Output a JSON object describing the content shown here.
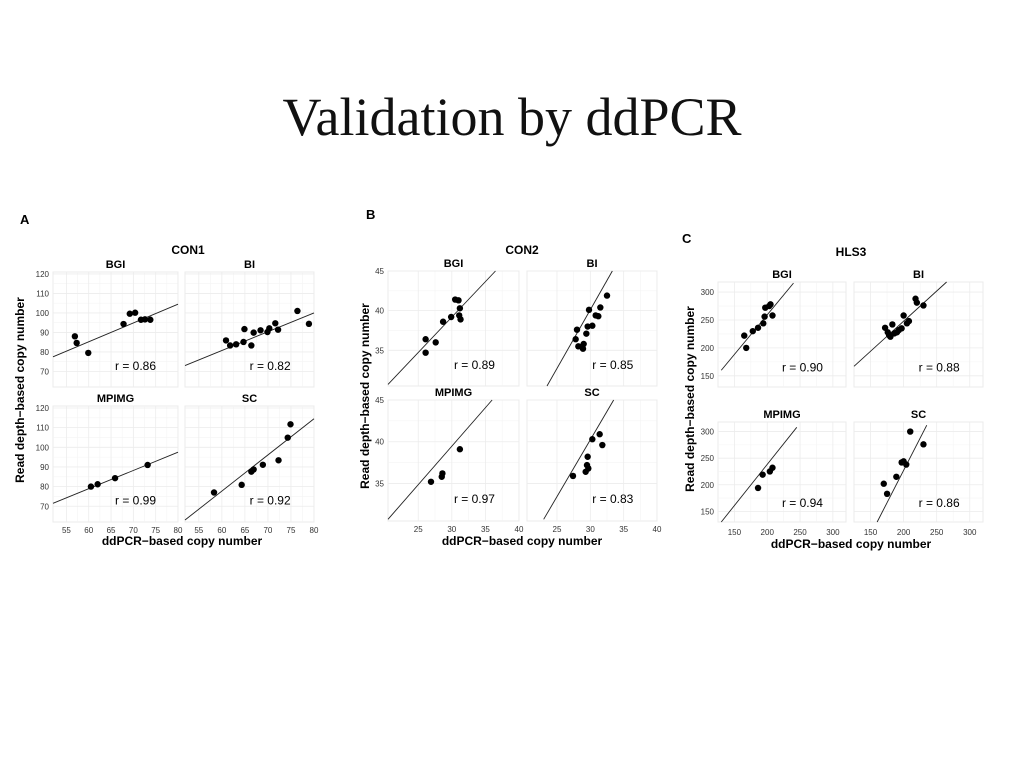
{
  "title": "Validation by ddPCR",
  "x_axis_label": "ddPCR−based copy number",
  "y_axis_label": "Read depth−based copy number",
  "chart_data": [
    {
      "type": "scatter",
      "label": "A",
      "title": "CON1",
      "xlabel": "ddPCR−based copy number",
      "ylabel": "Read depth−based copy number",
      "x_ticks": [
        55,
        60,
        65,
        70,
        75,
        80
      ],
      "y_ticks": [
        70,
        80,
        90,
        100,
        110,
        120
      ],
      "xlim": [
        52,
        80
      ],
      "ylim": [
        62,
        121
      ],
      "grid": true,
      "panels": [
        {
          "name": "BGI",
          "r": "r = 0.86",
          "line": [
            [
              52,
              77.5
            ],
            [
              80,
              104.5
            ]
          ],
          "points": [
            [
              56.9,
              88.0
            ],
            [
              57.3,
              84.6
            ],
            [
              59.9,
              79.5
            ],
            [
              67.8,
              94.3
            ],
            [
              69.2,
              99.6
            ],
            [
              70.4,
              100.1
            ],
            [
              71.7,
              96.5
            ],
            [
              72.6,
              96.7
            ],
            [
              73.8,
              96.5
            ]
          ]
        },
        {
          "name": "BI",
          "r": "r = 0.82",
          "line": [
            [
              52,
              73.0
            ],
            [
              80,
              100.0
            ]
          ],
          "points": [
            [
              60.9,
              85.9
            ],
            [
              61.8,
              83.3
            ],
            [
              63.1,
              83.9
            ],
            [
              64.7,
              85.1
            ],
            [
              64.9,
              91.7
            ],
            [
              66.4,
              83.3
            ],
            [
              66.9,
              89.9
            ],
            [
              68.4,
              91.1
            ],
            [
              69.9,
              90.2
            ],
            [
              70.3,
              92.1
            ],
            [
              71.6,
              94.7
            ],
            [
              72.2,
              91.4
            ],
            [
              76.4,
              101.0
            ],
            [
              78.9,
              94.4
            ]
          ]
        },
        {
          "name": "MPIMG",
          "r": "r = 0.99",
          "line": [
            [
              52,
              71.5
            ],
            [
              80,
              97.5
            ]
          ],
          "points": [
            [
              60.5,
              80.0
            ],
            [
              62.0,
              81.2
            ],
            [
              65.9,
              84.3
            ],
            [
              73.2,
              91.0
            ]
          ]
        },
        {
          "name": "SC",
          "r": "r = 0.92",
          "line": [
            [
              52,
              63.0
            ],
            [
              80,
              114.5
            ]
          ],
          "points": [
            [
              58.3,
              77.0
            ],
            [
              64.3,
              80.9
            ],
            [
              66.4,
              87.6
            ],
            [
              66.9,
              88.7
            ],
            [
              68.9,
              91.1
            ],
            [
              72.3,
              93.4
            ],
            [
              74.3,
              104.9
            ],
            [
              74.9,
              111.7
            ]
          ]
        }
      ]
    },
    {
      "type": "scatter",
      "label": "B",
      "title": "CON2",
      "xlabel": "ddPCR−based copy number",
      "ylabel": "Read depth−based copy number",
      "x_ticks": [
        25,
        30,
        35,
        40
      ],
      "y_ticks": [
        35,
        40,
        45
      ],
      "xlim": [
        20.5,
        40
      ],
      "ylim": [
        30.5,
        45
      ],
      "grid": true,
      "panels": [
        {
          "name": "BGI",
          "r": "r = 0.89",
          "line": [
            [
              20.5,
              30.7
            ],
            [
              36.5,
              45.0
            ]
          ],
          "points": [
            [
              26.1,
              36.4
            ],
            [
              26.1,
              34.7
            ],
            [
              27.6,
              36.0
            ],
            [
              28.7,
              38.6
            ],
            [
              29.9,
              39.2
            ],
            [
              30.5,
              41.4
            ],
            [
              31.0,
              41.3
            ],
            [
              31.1,
              39.4
            ],
            [
              31.2,
              40.3
            ],
            [
              31.3,
              38.9
            ]
          ]
        },
        {
          "name": "BI",
          "r": "r = 0.85",
          "line": [
            [
              23.5,
              30.5
            ],
            [
              33.3,
              45.0
            ]
          ],
          "points": [
            [
              27.8,
              36.4
            ],
            [
              28.0,
              37.6
            ],
            [
              28.2,
              35.5
            ],
            [
              28.9,
              35.2
            ],
            [
              29.0,
              35.8
            ],
            [
              29.4,
              37.1
            ],
            [
              29.6,
              38.0
            ],
            [
              29.8,
              40.1
            ],
            [
              30.3,
              38.1
            ],
            [
              30.8,
              39.4
            ],
            [
              31.2,
              39.3
            ],
            [
              31.5,
              40.4
            ],
            [
              32.5,
              41.9
            ]
          ]
        },
        {
          "name": "MPIMG",
          "r": "r = 0.97",
          "line": [
            [
              20.5,
              30.7
            ],
            [
              36.0,
              45.0
            ]
          ],
          "points": [
            [
              26.9,
              35.2
            ],
            [
              28.5,
              35.8
            ],
            [
              28.6,
              36.2
            ],
            [
              31.2,
              39.1
            ]
          ]
        },
        {
          "name": "SC",
          "r": "r = 0.83",
          "line": [
            [
              23.0,
              30.7
            ],
            [
              33.5,
              45.0
            ]
          ],
          "points": [
            [
              27.4,
              35.9
            ],
            [
              29.3,
              36.4
            ],
            [
              29.5,
              37.2
            ],
            [
              29.6,
              38.2
            ],
            [
              29.7,
              36.8
            ],
            [
              30.3,
              40.3
            ],
            [
              31.4,
              40.9
            ],
            [
              31.8,
              39.6
            ]
          ]
        }
      ]
    },
    {
      "type": "scatter",
      "label": "C",
      "title": "HLS3",
      "xlabel": "ddPCR−based copy number",
      "ylabel": "Read depth−based copy number",
      "x_ticks": [
        150,
        200,
        250,
        300
      ],
      "y_ticks": [
        150,
        200,
        250,
        300
      ],
      "xlim": [
        125,
        320
      ],
      "ylim": [
        130,
        318
      ],
      "grid": true,
      "panels": [
        {
          "name": "BGI",
          "r": "r = 0.90",
          "line": [
            [
              130,
              160
            ],
            [
              240,
              316
            ]
          ],
          "points": [
            [
              165,
              222
            ],
            [
              168,
              200
            ],
            [
              178,
              230
            ],
            [
              186,
              236
            ],
            [
              194,
              244
            ],
            [
              196,
              256
            ],
            [
              197,
              272
            ],
            [
              203,
              275
            ],
            [
              205,
              278
            ],
            [
              208,
              258
            ]
          ]
        },
        {
          "name": "BI",
          "r": "r = 0.88",
          "line": [
            [
              125,
              167
            ],
            [
              265,
              318
            ]
          ],
          "points": [
            [
              172,
              236
            ],
            [
              176,
              228
            ],
            [
              178,
              223
            ],
            [
              180,
              220
            ],
            [
              183,
              242
            ],
            [
              186,
              226
            ],
            [
              190,
              228
            ],
            [
              193,
              232
            ],
            [
              197,
              235
            ],
            [
              200,
              258
            ],
            [
              205,
              244
            ],
            [
              208,
              248
            ],
            [
              218,
              288
            ],
            [
              220,
              281
            ],
            [
              230,
              276
            ]
          ]
        },
        {
          "name": "MPIMG",
          "r": "r = 0.94",
          "line": [
            [
              130,
              130
            ],
            [
              245,
              308
            ]
          ],
          "points": [
            [
              186,
              194
            ],
            [
              193,
              219
            ],
            [
              204,
              225
            ],
            [
              208,
              232
            ]
          ]
        },
        {
          "name": "SC",
          "r": "r = 0.86",
          "line": [
            [
              160,
              130
            ],
            [
              235,
              312
            ]
          ],
          "points": [
            [
              170,
              202
            ],
            [
              175,
              183
            ],
            [
              189,
              215
            ],
            [
              197,
              242
            ],
            [
              200,
              244
            ],
            [
              204,
              238
            ],
            [
              210,
              300
            ],
            [
              230,
              276
            ]
          ]
        }
      ]
    }
  ]
}
